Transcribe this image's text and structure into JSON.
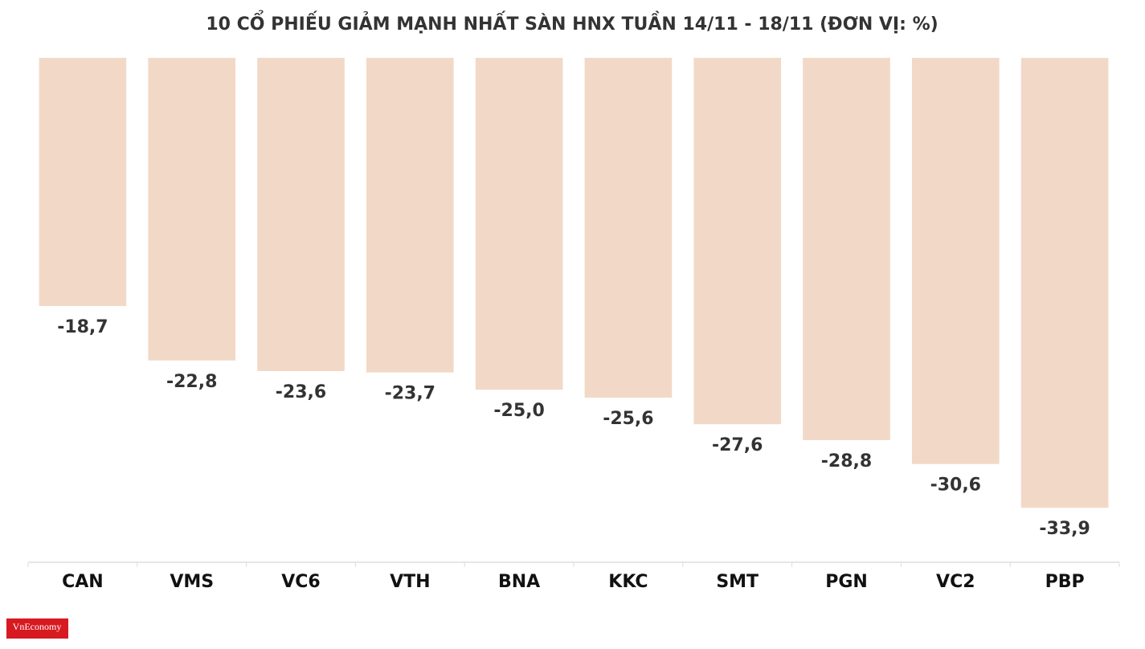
{
  "chart_data": {
    "type": "bar",
    "title": "10 CỔ PHIẾU GIẢM MẠNH NHẤT SÀN HNX TUẦN 14/11 - 18/11 (ĐƠN VỊ: %)",
    "categories": [
      "CAN",
      "VMS",
      "VC6",
      "VTH",
      "BNA",
      "KKC",
      "SMT",
      "PGN",
      "VC2",
      "PBP"
    ],
    "values": [
      -18.7,
      -22.8,
      -23.6,
      -23.7,
      -25.0,
      -25.6,
      -27.6,
      -28.8,
      -30.6,
      -33.9
    ],
    "value_labels": [
      "-18,7",
      "-22,8",
      "-23,6",
      "-23,7",
      "-25,0",
      "-25,6",
      "-27,6",
      "-28,8",
      "-30,6",
      "-33,9"
    ],
    "color": "#f2d9c7",
    "ylim": [
      0,
      -38
    ]
  },
  "logo": "VnEconomy"
}
